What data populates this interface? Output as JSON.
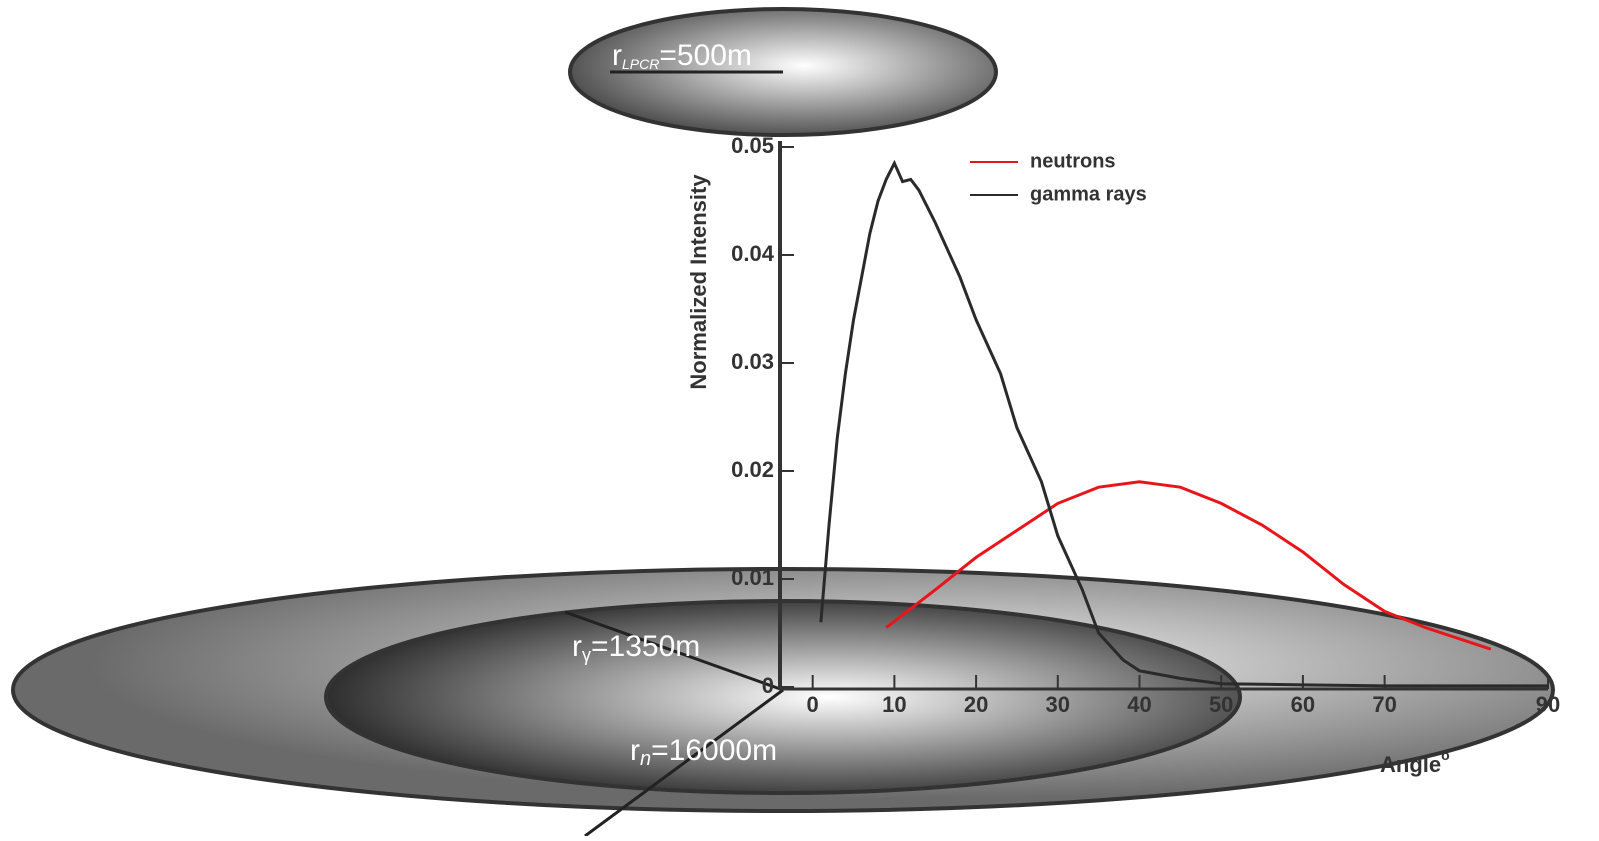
{
  "chart_data": {
    "type": "line",
    "y_label": "Normalized Intensity",
    "x_label": "Angle",
    "x_label_superscript": "o",
    "xlim": [
      -4,
      90
    ],
    "ylim": [
      0,
      0.05
    ],
    "xticks": [
      0,
      10,
      20,
      30,
      40,
      50,
      60,
      70,
      90
    ],
    "yticks": [
      0,
      0.01,
      0.02,
      0.03,
      0.04,
      0.05
    ],
    "legend": "upper right",
    "series": [
      {
        "name": "neutrons",
        "color": "#e8161b",
        "x": [
          9,
          15,
          20,
          25,
          30,
          35,
          40,
          45,
          50,
          55,
          60,
          65,
          70,
          75,
          83
        ],
        "values": [
          0.0055,
          0.009,
          0.012,
          0.0145,
          0.017,
          0.0185,
          0.019,
          0.0185,
          0.017,
          0.015,
          0.0125,
          0.0095,
          0.007,
          0.0055,
          0.0035
        ]
      },
      {
        "name": "gamma rays",
        "color": "#2a2a2a",
        "x": [
          1,
          2,
          3,
          4,
          5,
          6,
          7,
          8,
          9,
          10,
          11,
          12,
          13,
          15,
          18,
          20,
          23,
          25,
          28,
          30,
          33,
          35,
          38,
          40,
          45,
          50,
          60,
          70,
          80,
          90
        ],
        "values": [
          0.006,
          0.015,
          0.023,
          0.029,
          0.034,
          0.038,
          0.042,
          0.045,
          0.047,
          0.0485,
          0.0468,
          0.047,
          0.046,
          0.043,
          0.038,
          0.034,
          0.029,
          0.024,
          0.019,
          0.014,
          0.009,
          0.005,
          0.0025,
          0.0015,
          0.0008,
          0.0003,
          0.0002,
          0.0001,
          0.0001,
          0.0001
        ]
      }
    ],
    "annotations": [
      {
        "main": "r",
        "sub": "LPCR",
        "value": "=500m"
      },
      {
        "main": "r",
        "sub": "γ",
        "value": "=1350m"
      },
      {
        "main": "r",
        "sub": "n",
        "value": "=16000m"
      }
    ]
  }
}
